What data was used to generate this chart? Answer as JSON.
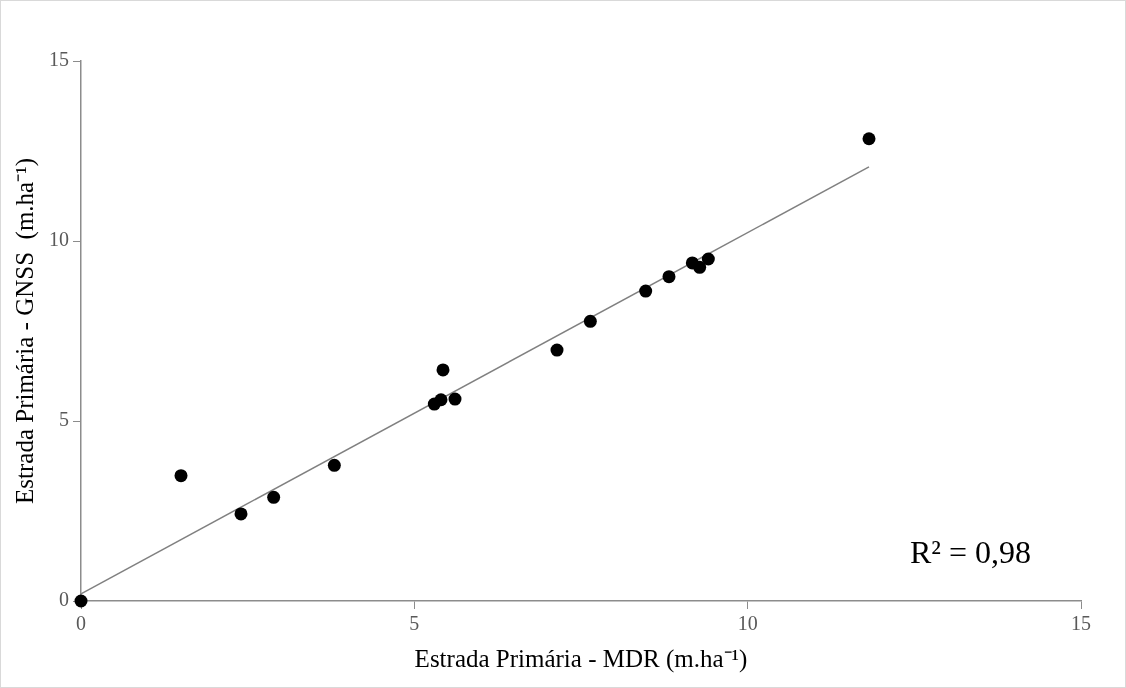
{
  "chart_data": {
    "type": "scatter",
    "xlabel": "Estrada Primária - MDR (m.ha⁻¹)",
    "ylabel": "Estrada Primária - GNSS  (m.ha⁻¹)",
    "series": [
      {
        "color": "#000000",
        "x": [
          0,
          1.5,
          2.4,
          2.89,
          3.8,
          5.3,
          5.4,
          5.61,
          5.43,
          7.14,
          7.64,
          8.47,
          8.82,
          9.17,
          9.28,
          9.41,
          11.82
        ],
        "values": [
          0,
          3.48,
          2.42,
          2.88,
          3.77,
          5.47,
          5.59,
          5.61,
          6.42,
          6.97,
          7.77,
          8.61,
          9.01,
          9.39,
          9.27,
          9.5,
          12.84
        ]
      },
      {
        "type": "line",
        "color": "#808080",
        "x": [
          0,
          11.82
        ],
        "values": [
          0.2,
          12.06
        ],
        "marker": "none"
      }
    ],
    "xlim": [
      0,
      15
    ],
    "ylim": [
      0,
      15
    ],
    "xticks": [
      0,
      5,
      10,
      15
    ],
    "yticks": [
      0,
      5,
      10,
      15
    ],
    "grid": false,
    "legend": false,
    "marker": "circle",
    "annotations": [
      "R² = 0,98"
    ]
  }
}
